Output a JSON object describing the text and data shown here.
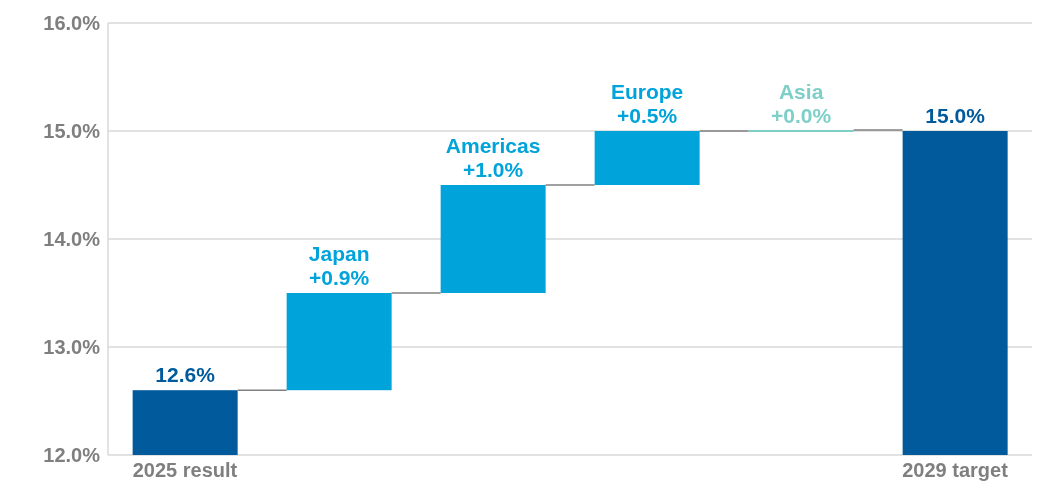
{
  "chart_data": {
    "type": "bar",
    "categories": [
      "2025 result",
      null,
      null,
      null,
      null,
      "2029 target"
    ],
    "base": [
      12.0,
      12.6,
      13.5,
      14.5,
      15.0,
      12.0
    ],
    "values": [
      0.6,
      0.9,
      1.0,
      0.5,
      0.0,
      3.0
    ],
    "colors": [
      "#005a9c",
      "#00a3da",
      "#00a3da",
      "#00a3da",
      "#7fcfc9",
      "#005a9c"
    ],
    "value_labels": [
      "12.6%",
      "Japan\n+0.9%",
      "Americas\n+1.0%",
      "Europe\n+0.5%",
      "Asia\n+0.0%",
      "15.0%"
    ],
    "ylim": [
      12.0,
      16.0
    ],
    "yticks": [
      {
        "value": 12.0,
        "label": "12.0%"
      },
      {
        "value": 13.0,
        "label": "13.0%"
      },
      {
        "value": 14.0,
        "label": "14.0%"
      },
      {
        "value": 15.0,
        "label": "15.0%"
      },
      {
        "value": 16.0,
        "label": "16.0%"
      }
    ],
    "grid": "y"
  }
}
